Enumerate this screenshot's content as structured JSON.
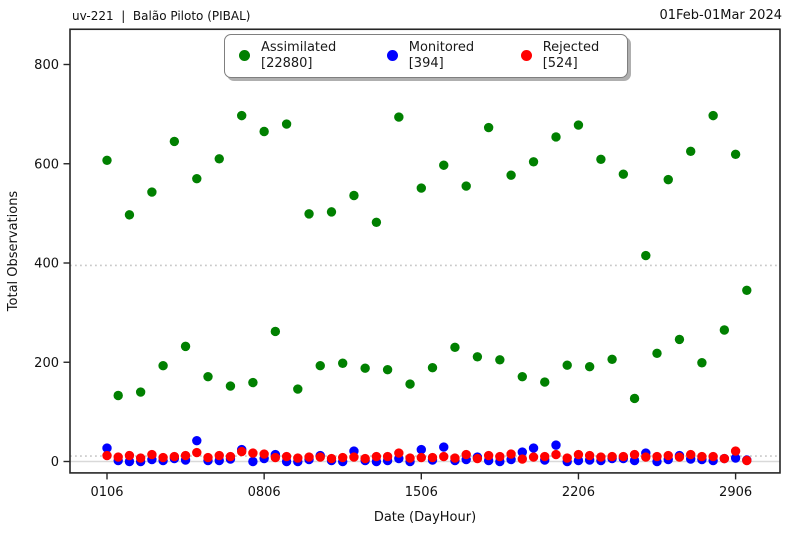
{
  "header": {
    "left_title": "uv-221  |  Balão Piloto (PIBAL)",
    "right_title": "01Feb-01Mar 2024"
  },
  "chart_data": {
    "type": "scatter",
    "title": "uv-221 | Balão Piloto (PIBAL)",
    "period": "01Feb-01Mar 2024",
    "xlabel": "Date (DayHour)",
    "ylabel": "Total Observations",
    "x_tick_labels": [
      "0106",
      "0806",
      "1506",
      "2206",
      "2906"
    ],
    "x_tick_days": [
      1,
      8,
      15,
      22,
      29
    ],
    "y_ticks": [
      0,
      200,
      400,
      600,
      800
    ],
    "ylim": [
      -23,
      871
    ],
    "days_in_period": 29,
    "hours_per_day": [
      "06",
      "18"
    ],
    "grid": false,
    "legend_position": "upper center",
    "reference_lines": [
      {
        "value": 395,
        "style": "dotted",
        "color": "#c9c9c9"
      },
      {
        "value": 11,
        "style": "dotted",
        "color": "#c9c9c9"
      },
      {
        "value": 0,
        "style": "solid",
        "color": "#d9d9d9"
      }
    ],
    "series": [
      {
        "name": "Assimilated",
        "total": 22880,
        "color": "#008000",
        "values_06h": [
          607,
          497,
          543,
          645,
          570,
          610,
          697,
          665,
          680,
          499,
          503,
          536,
          482,
          694,
          551,
          597,
          555,
          673,
          577,
          604,
          654,
          678,
          609,
          579,
          415,
          568,
          625,
          697,
          619
        ],
        "values_18h": [
          133,
          140,
          193,
          232,
          171,
          152,
          159,
          262,
          146,
          193,
          198,
          188,
          185,
          156,
          189,
          230,
          211,
          205,
          171,
          160,
          194,
          191,
          206,
          127,
          218,
          246,
          199,
          265,
          345
        ]
      },
      {
        "name": "Monitored",
        "total": 394,
        "color": "#0000ff",
        "values_06h": [
          27,
          0,
          4,
          6,
          42,
          2,
          24,
          6,
          0,
          4,
          2,
          21,
          0,
          6,
          24,
          29,
          4,
          2,
          4,
          27,
          33,
          2,
          2,
          6,
          17,
          4,
          5,
          2,
          7
        ],
        "values_18h": [
          2,
          0,
          2,
          3,
          2,
          5,
          0,
          14,
          0,
          12,
          0,
          2,
          2,
          0,
          3,
          2,
          9,
          0,
          19,
          3,
          0,
          3,
          6,
          2,
          0,
          12,
          4,
          6,
          3
        ]
      },
      {
        "name": "Rejected",
        "total": 524,
        "color": "#ff0000",
        "values_06h": [
          12,
          12,
          14,
          10,
          18,
          12,
          20,
          15,
          10,
          9,
          6,
          9,
          10,
          17,
          8,
          10,
          14,
          12,
          15,
          9,
          14,
          14,
          9,
          10,
          9,
          12,
          14,
          10,
          21
        ],
        "values_18h": [
          9,
          7,
          8,
          12,
          8,
          10,
          17,
          8,
          7,
          9,
          8,
          6,
          10,
          7,
          8,
          7,
          6,
          10,
          5,
          10,
          7,
          12,
          10,
          14,
          10,
          9,
          10,
          6,
          2
        ]
      }
    ],
    "legend": {
      "entries": [
        {
          "label": "Assimilated",
          "count_label": "[22880]",
          "color": "#008000"
        },
        {
          "label": "Monitored",
          "count_label": "[394]",
          "color": "#0000ff"
        },
        {
          "label": "Rejected",
          "count_label": "[524]",
          "color": "#ff0000"
        }
      ]
    }
  }
}
